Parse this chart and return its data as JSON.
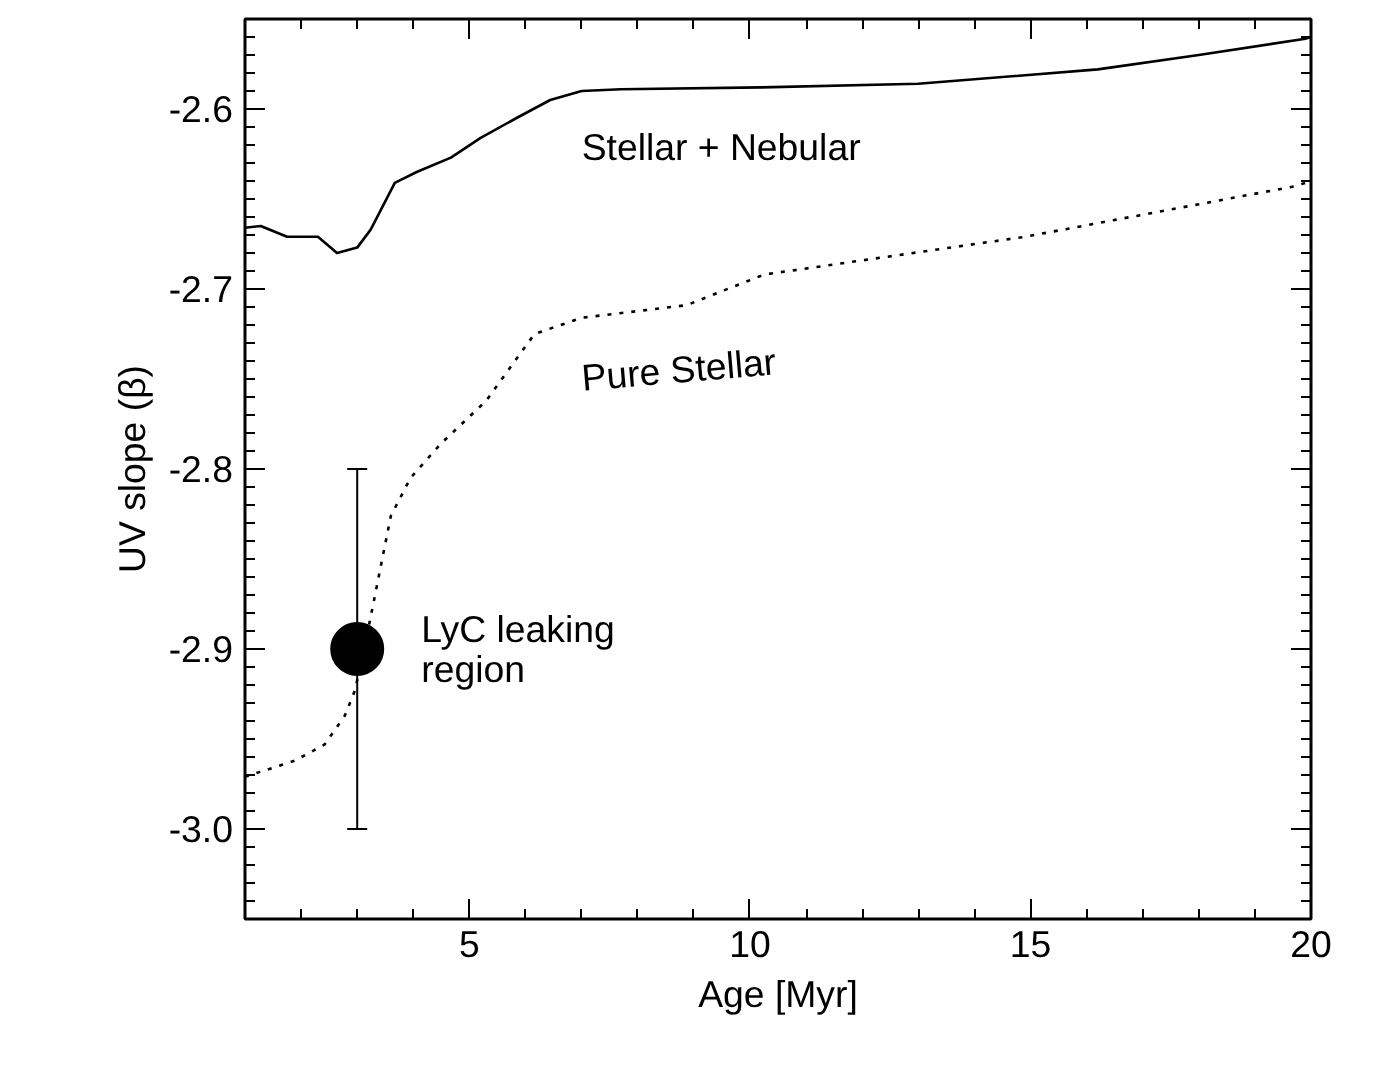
{
  "chart_data": {
    "type": "line",
    "xlabel": "Age [Myr]",
    "ylabel": "UV slope (β)",
    "xlim": [
      1,
      20
    ],
    "ylim": [
      -3.05,
      -2.55
    ],
    "xticks": [
      5,
      10,
      15,
      20
    ],
    "yticks": [
      {
        "value": -2.6,
        "label": "-2.6"
      },
      {
        "value": -2.7,
        "label": "-2.7"
      },
      {
        "value": -2.8,
        "label": "-2.8"
      },
      {
        "value": -2.9,
        "label": "-2.9"
      },
      {
        "value": -3.0,
        "label": "-3.0"
      }
    ],
    "grid": false,
    "series": [
      {
        "name": "Stellar + Nebular",
        "color": "#000000",
        "line_style": "solid",
        "x": [
          1,
          1.28,
          1.75,
          2.3,
          2.64,
          3.0,
          3.24,
          3.67,
          4.06,
          4.67,
          5.2,
          5.84,
          6.44,
          7.0,
          7.7,
          10.2,
          13.0,
          16.2,
          18.0,
          19.9,
          20
        ],
        "values": [
          -2.666,
          -2.665,
          -2.671,
          -2.671,
          -2.68,
          -2.677,
          -2.667,
          -2.641,
          -2.635,
          -2.627,
          -2.616,
          -2.605,
          -2.595,
          -2.59,
          -2.589,
          -2.588,
          -2.586,
          -2.578,
          -2.57,
          -2.561,
          -2.56
        ]
      },
      {
        "name": "Pure Stellar",
        "color": "#000000",
        "line_style": "dotted",
        "x": [
          1,
          1.89,
          2.42,
          2.78,
          2.96,
          3.17,
          3.35,
          3.6,
          3.95,
          4.49,
          5.3,
          6.16,
          7.0,
          8.87,
          10.25,
          14.9,
          17.3,
          19.7,
          20
        ],
        "values": [
          -2.971,
          -2.962,
          -2.953,
          -2.937,
          -2.923,
          -2.893,
          -2.865,
          -2.826,
          -2.805,
          -2.786,
          -2.762,
          -2.725,
          -2.716,
          -2.709,
          -2.692,
          -2.671,
          -2.657,
          -2.643,
          -2.64
        ]
      },
      {
        "name": "LyC leaking\nregion",
        "type": "scatter",
        "marker": "circle",
        "color": "#000000",
        "x": [
          3
        ],
        "values": [
          -2.9
        ],
        "errors": [
          0.1
        ]
      }
    ]
  }
}
